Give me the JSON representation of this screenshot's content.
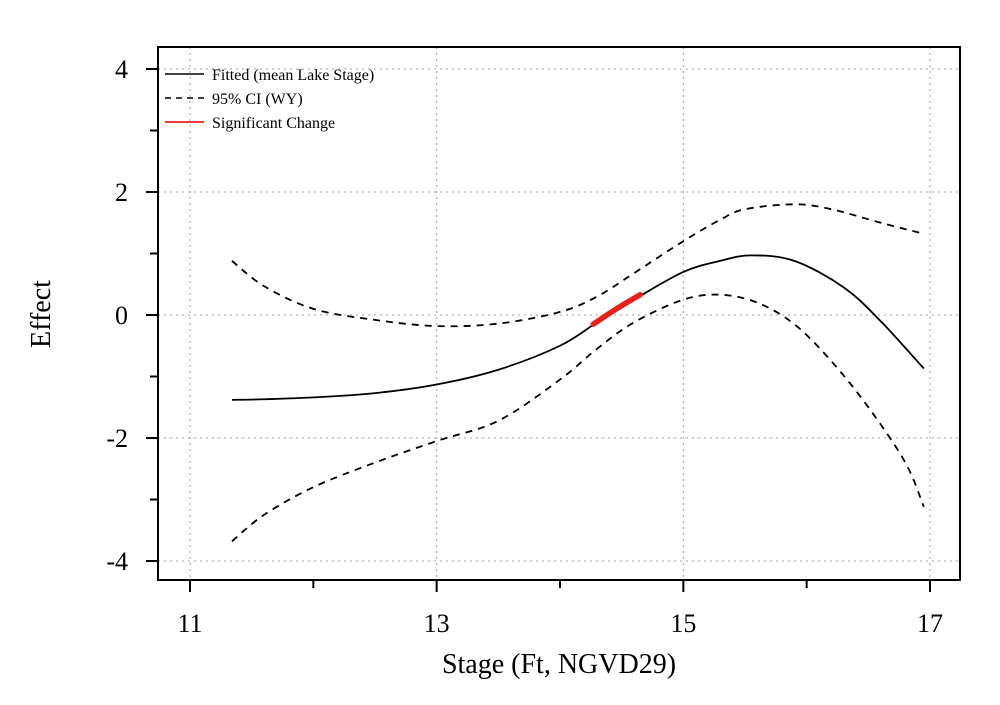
{
  "chart_data": {
    "type": "line",
    "xlabel": "Stage (Ft, NGVD29)",
    "ylabel": "Effect",
    "xlim": [
      10.75,
      17.25
    ],
    "ylim": [
      -4.3,
      4.3
    ],
    "x_ticks_major": [
      11,
      13,
      15,
      17
    ],
    "x_ticks_minor": [
      12,
      14,
      16
    ],
    "y_ticks_major": [
      -4,
      -2,
      0,
      2,
      4
    ],
    "y_ticks_minor": [
      -3,
      -1,
      1,
      3
    ],
    "x_tick_labels": [
      "11",
      "13",
      "15",
      "17"
    ],
    "y_tick_labels": [
      "-4",
      "-2",
      "0",
      "2",
      "4"
    ],
    "grid": true,
    "legend_position": "top-left",
    "series": [
      {
        "name": "Fitted (mean Lake Stage)",
        "style": "solid",
        "color": "#000000",
        "x": [
          11.34,
          11.6,
          12.0,
          12.5,
          13.0,
          13.5,
          14.0,
          14.3,
          14.6,
          15.0,
          15.3,
          15.55,
          15.9,
          16.3,
          16.6,
          16.95
        ],
        "y": [
          -1.38,
          -1.37,
          -1.34,
          -1.27,
          -1.13,
          -0.89,
          -0.5,
          -0.12,
          0.25,
          0.7,
          0.88,
          0.97,
          0.88,
          0.45,
          -0.1,
          -0.87
        ]
      },
      {
        "name": "95% CI (WY)",
        "style": "dashed",
        "color": "#000000",
        "x": [
          11.34,
          11.6,
          12.0,
          12.5,
          13.0,
          13.5,
          14.0,
          14.3,
          14.6,
          15.0,
          15.3,
          15.5,
          15.9,
          16.2,
          16.6,
          16.95
        ],
        "y": [
          0.88,
          0.47,
          0.1,
          -0.08,
          -0.18,
          -0.14,
          0.05,
          0.3,
          0.68,
          1.2,
          1.55,
          1.72,
          1.8,
          1.72,
          1.5,
          1.32
        ]
      },
      {
        "name": "",
        "style": "dashed",
        "color": "#000000",
        "x": [
          11.34,
          11.6,
          12.0,
          12.5,
          13.0,
          13.5,
          14.0,
          14.3,
          14.6,
          15.0,
          15.3,
          15.6,
          15.9,
          16.2,
          16.5,
          16.8,
          16.95
        ],
        "y": [
          -3.68,
          -3.25,
          -2.8,
          -2.4,
          -2.05,
          -1.72,
          -1.05,
          -0.55,
          -0.12,
          0.25,
          0.33,
          0.2,
          -0.15,
          -0.75,
          -1.5,
          -2.4,
          -3.12
        ]
      },
      {
        "name": "Significant Change",
        "style": "solid-thick",
        "color": "#e8201b",
        "x": [
          14.27,
          14.45,
          14.65
        ],
        "y": [
          -0.15,
          0.09,
          0.33
        ]
      }
    ]
  }
}
